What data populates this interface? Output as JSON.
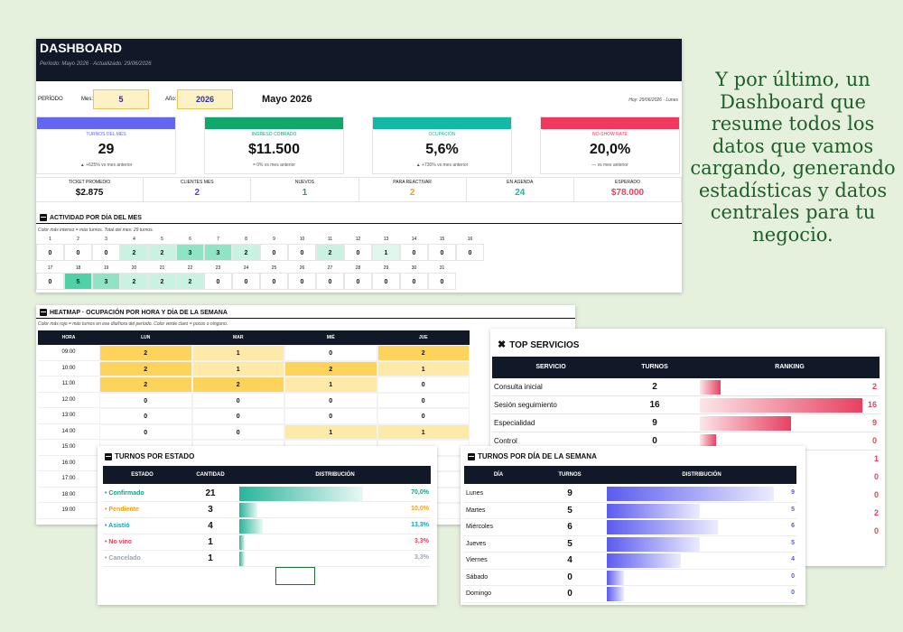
{
  "dashboard": {
    "title": "DASHBOARD",
    "subtitle": "Período: Mayo 2026 · Actualizado: 29/06/2026",
    "period_label": "PERÍODO",
    "month_label": "Mes:",
    "month_value": "5",
    "year_label": "Año:",
    "year_value": "2026",
    "month_name": "Mayo 2026",
    "today": "Hoy: 29/06/2026 · Lunes",
    "kpis": [
      {
        "name": "TURNOS DEL MES",
        "value": "29",
        "delta": "▲ +625% vs mes anterior",
        "color": "#6366f1"
      },
      {
        "name": "INGRESO COBRADO",
        "value": "$11.500",
        "delta": "= 0% vs mes anterior",
        "color": "#10a86a"
      },
      {
        "name": "OCUPACIÓN",
        "value": "5,6%",
        "delta": "▲ +730% vs mes anterior",
        "color": "#14b8a6"
      },
      {
        "name": "NO-SHOW RATE",
        "value": "20,0%",
        "delta": "— vs mes anterior",
        "color": "#f0375e"
      }
    ],
    "minis": [
      {
        "name": "TICKET PROMEDIO",
        "value": "$2.875",
        "color": "#111"
      },
      {
        "name": "CLIENTES MES",
        "value": "2",
        "color": "#4f46e5"
      },
      {
        "name": "NUEVOS",
        "value": "1",
        "color": "#10a86a"
      },
      {
        "name": "PARA REACTIVAR",
        "value": "2",
        "color": "#f59e0b"
      },
      {
        "name": "EN AGENDA",
        "value": "24",
        "color": "#14b8a6"
      },
      {
        "name": "ESPERADO",
        "value": "$78.000",
        "color": "#e8415f"
      }
    ],
    "activity_title": "ACTIVIDAD POR DÍA DEL MES",
    "activity_note": "Color más intenso = más turnos. Total del mes: 29 turnos.",
    "days_row1": [
      {
        "d": "1",
        "v": "0"
      },
      {
        "d": "2",
        "v": "0"
      },
      {
        "d": "3",
        "v": "0"
      },
      {
        "d": "4",
        "v": "2"
      },
      {
        "d": "5",
        "v": "2"
      },
      {
        "d": "6",
        "v": "3"
      },
      {
        "d": "7",
        "v": "3"
      },
      {
        "d": "8",
        "v": "2"
      },
      {
        "d": "9",
        "v": "0"
      },
      {
        "d": "10",
        "v": "0"
      },
      {
        "d": "11",
        "v": "2"
      },
      {
        "d": "12",
        "v": "0"
      },
      {
        "d": "13",
        "v": "1"
      },
      {
        "d": "14",
        "v": "0"
      },
      {
        "d": "15",
        "v": "0"
      },
      {
        "d": "16",
        "v": "0"
      }
    ],
    "days_row2": [
      {
        "d": "17",
        "v": "0"
      },
      {
        "d": "18",
        "v": "5"
      },
      {
        "d": "19",
        "v": "3"
      },
      {
        "d": "20",
        "v": "2"
      },
      {
        "d": "21",
        "v": "2"
      },
      {
        "d": "22",
        "v": "2"
      },
      {
        "d": "23",
        "v": "0"
      },
      {
        "d": "24",
        "v": "0"
      },
      {
        "d": "25",
        "v": "0"
      },
      {
        "d": "26",
        "v": "0"
      },
      {
        "d": "27",
        "v": "0"
      },
      {
        "d": "28",
        "v": "0"
      },
      {
        "d": "29",
        "v": "0"
      },
      {
        "d": "30",
        "v": "0"
      },
      {
        "d": "31",
        "v": "0"
      }
    ]
  },
  "heatmap": {
    "title": "HEATMAP · OCUPACIÓN POR HORA Y DÍA DE LA SEMANA",
    "note": "Color más rojo = más turnos en ese día/hora del período. Color verde claro = pocos o ninguno.",
    "columns": [
      "HORA",
      "LUN",
      "MAR",
      "MIÉ",
      "JUE"
    ],
    "rows": [
      {
        "h": "09:00",
        "v": [
          "2",
          "1",
          "0",
          "2"
        ]
      },
      {
        "h": "10:00",
        "v": [
          "2",
          "1",
          "2",
          "1"
        ]
      },
      {
        "h": "11:00",
        "v": [
          "2",
          "2",
          "1",
          "0"
        ]
      },
      {
        "h": "12:00",
        "v": [
          "0",
          "0",
          "0",
          "0"
        ]
      },
      {
        "h": "13:00",
        "v": [
          "0",
          "0",
          "0",
          "0"
        ]
      },
      {
        "h": "14:00",
        "v": [
          "0",
          "0",
          "1",
          "1"
        ]
      },
      {
        "h": "15:00",
        "v": [
          "",
          "",
          "",
          ""
        ]
      },
      {
        "h": "16:00",
        "v": [
          "",
          "",
          "",
          ""
        ]
      },
      {
        "h": "17:00",
        "v": [
          "",
          "",
          "",
          ""
        ]
      },
      {
        "h": "18:00",
        "v": [
          "",
          "",
          "",
          ""
        ]
      },
      {
        "h": "19:00",
        "v": [
          "",
          "",
          "",
          ""
        ]
      }
    ]
  },
  "top_servicios": {
    "title": "TOP SERVICIOS",
    "columns": [
      "SERVICIO",
      "TURNOS",
      "RANKING"
    ],
    "rows": [
      {
        "name": "Consulta inicial",
        "turnos": "2",
        "rank": 2
      },
      {
        "name": "Sesión seguimiento",
        "turnos": "16",
        "rank": 16
      },
      {
        "name": "Especialidad",
        "turnos": "9",
        "rank": 9
      },
      {
        "name": "Control",
        "turnos": "0",
        "rank": 0
      }
    ],
    "hidden_right_values": [
      "1",
      "0",
      "0",
      "2",
      "0"
    ]
  },
  "turnos_estado": {
    "title": "TURNOS POR ESTADO",
    "columns": [
      "ESTADO",
      "CANTIDAD",
      "DISTRIBUCIÓN"
    ],
    "rows": [
      {
        "name": "• Confirmado",
        "count": "21",
        "pct": "70,0%",
        "frac": 0.7,
        "color": "#16a085"
      },
      {
        "name": "• Pendiente",
        "count": "3",
        "pct": "10,0%",
        "frac": 0.1,
        "color": "#f59e0b"
      },
      {
        "name": "• Asistió",
        "count": "4",
        "pct": "13,3%",
        "frac": 0.133,
        "color": "#0ea5b7"
      },
      {
        "name": "• No vino",
        "count": "1",
        "pct": "3,3%",
        "frac": 0.033,
        "color": "#e8415f"
      },
      {
        "name": "• Cancelado",
        "count": "1",
        "pct": "3,3%",
        "frac": 0.033,
        "color": "#9ca3af"
      }
    ]
  },
  "turnos_dia": {
    "title": "TURNOS POR DÍA DE LA SEMANA",
    "columns": [
      "DÍA",
      "TURNOS",
      "DISTRIBUCIÓN"
    ],
    "rows": [
      {
        "name": "Lunes",
        "count": "9",
        "num": 9
      },
      {
        "name": "Martes",
        "count": "5",
        "num": 5
      },
      {
        "name": "Miércoles",
        "count": "6",
        "num": 6
      },
      {
        "name": "Jueves",
        "count": "5",
        "num": 5
      },
      {
        "name": "Viernes",
        "count": "4",
        "num": 4
      },
      {
        "name": "Sábado",
        "count": "0",
        "num": 0
      },
      {
        "name": "Domingo",
        "count": "0",
        "num": 0
      }
    ]
  },
  "caption": "Y por último, un Dashboard que resume todos los datos que vamos cargando, generando estadísticas y datos centrales para tu negocio."
}
